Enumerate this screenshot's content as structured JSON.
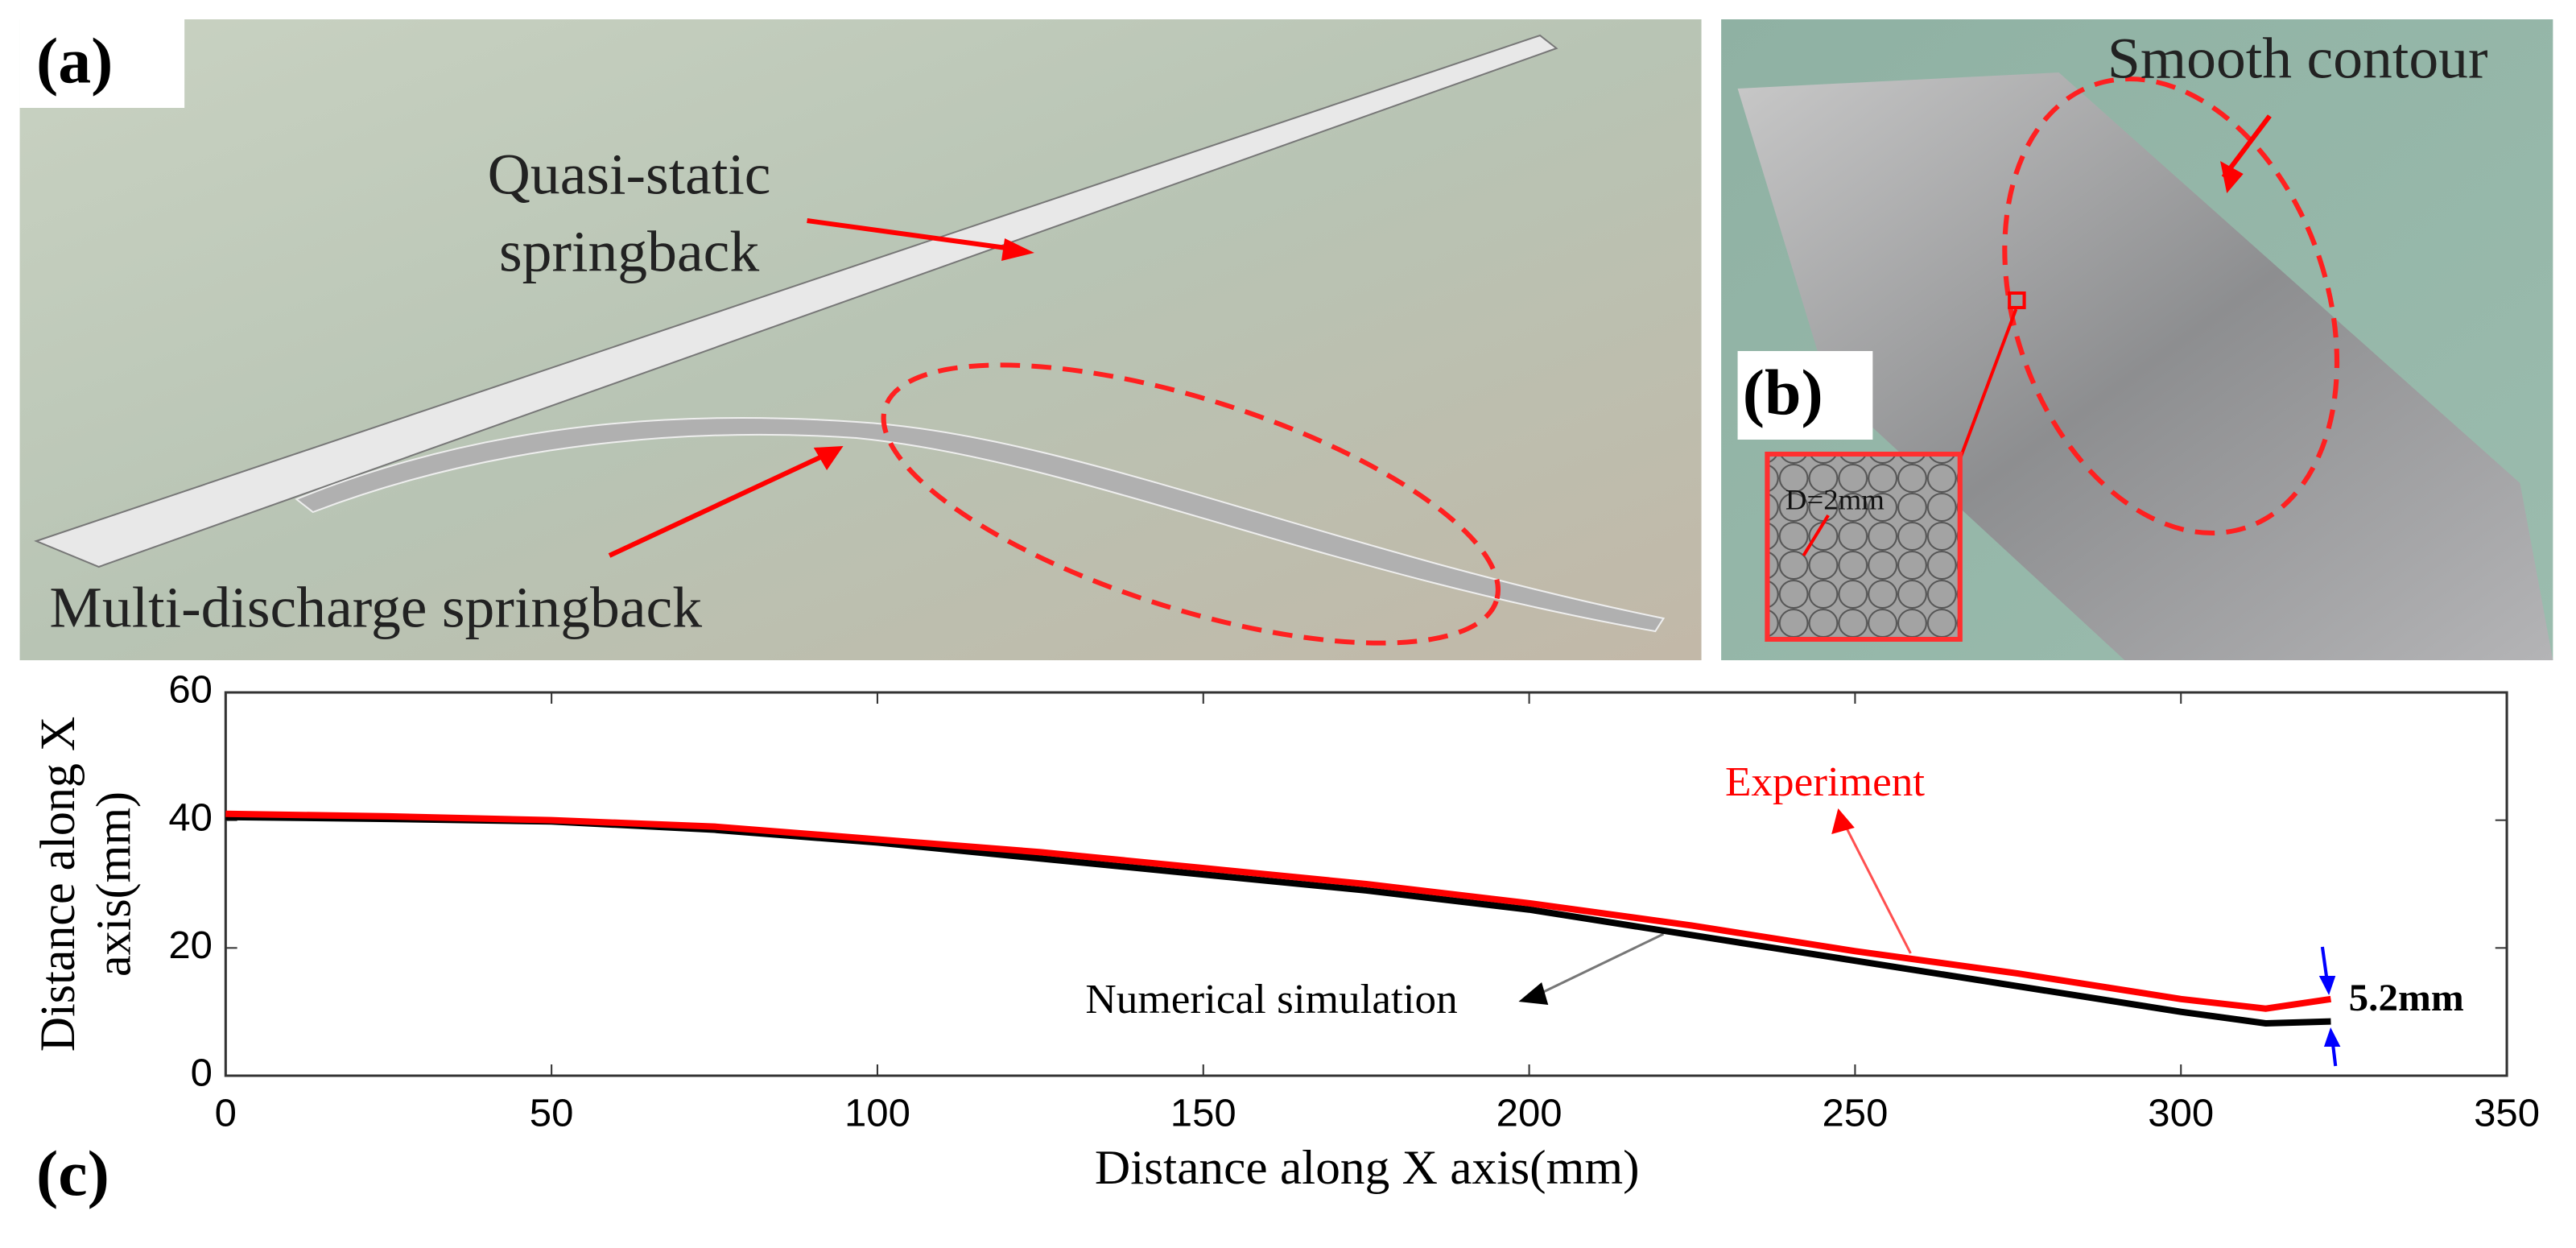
{
  "panels": {
    "a": {
      "label": "(a)",
      "quasi_static": [
        "Quasi-static",
        "springback"
      ],
      "multi_discharge": "Multi-discharge springback"
    },
    "b": {
      "label": "(b)",
      "smooth": "Smooth contour",
      "inset": "D=2mm"
    },
    "c": {
      "label": "(c)"
    }
  },
  "chart_data": {
    "type": "line",
    "xlabel": "Distance along X axis(mm)",
    "ylabel": [
      "Distance along X",
      "axis(mm)"
    ],
    "x": [
      0,
      25,
      50,
      75,
      100,
      125,
      150,
      175,
      200,
      225,
      250,
      275,
      300,
      313,
      323
    ],
    "series": [
      {
        "name": "Experiment",
        "color": "#ff0000",
        "values": [
          41,
          40.6,
          40,
          39,
          37,
          35,
          32.5,
          30,
          27,
          23.5,
          19.5,
          16,
          12,
          10.5,
          12
        ]
      },
      {
        "name": "Numerical simulation",
        "color": "#000000",
        "values": [
          40.5,
          40.2,
          39.8,
          38.5,
          36.5,
          34,
          31.5,
          29,
          26,
          22,
          18,
          14,
          10,
          8.2,
          8.5
        ]
      }
    ],
    "annotation": "5.2mm",
    "xlim": [
      0,
      350
    ],
    "xticks": [
      0,
      50,
      100,
      150,
      200,
      250,
      300,
      350
    ],
    "ylim": [
      0,
      60
    ],
    "yticks": [
      0,
      20,
      40,
      60
    ],
    "grid": false
  }
}
